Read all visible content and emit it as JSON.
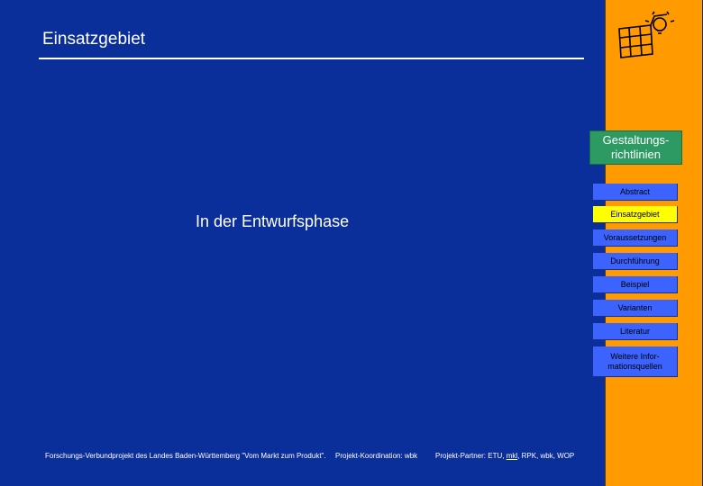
{
  "slide": {
    "title": "Einsatzgebiet",
    "body_text": "In der Entwurfsphase"
  },
  "sidebar": {
    "logo_icon": "grid-lightbulb-logo-icon",
    "header": "Gestaltungs-richtlinien",
    "header_line1": "Gestaltungs-",
    "header_line2": "richtlinien",
    "items": [
      {
        "label": "Abstract"
      },
      {
        "label": "Einsatzgebiet",
        "active": true
      },
      {
        "label": "Voraussetzungen"
      },
      {
        "label": "Durchführung"
      },
      {
        "label": "Beispiel"
      },
      {
        "label": "Varianten"
      },
      {
        "label": "Literatur"
      },
      {
        "label_line1": "Weitere Infor-",
        "label_line2": "mationsquellen"
      }
    ]
  },
  "footer": {
    "project": "Forschungs-Verbundprojekt des Landes Baden-Württemberg \"Vom Markt zum Produkt\".",
    "coordination": "Projekt-Koordination: wbk",
    "partners_prefix": "Projekt-Partner: ETU, ",
    "partners_link": "mkl",
    "partners_suffix": ", RPK, wbk, WOP"
  },
  "colors": {
    "background": "#0b2f9a",
    "sidebar": "#ff9a00",
    "header_box": "#2e9a63",
    "nav_item": "#3d63ff",
    "nav_active": "#ffff00"
  }
}
